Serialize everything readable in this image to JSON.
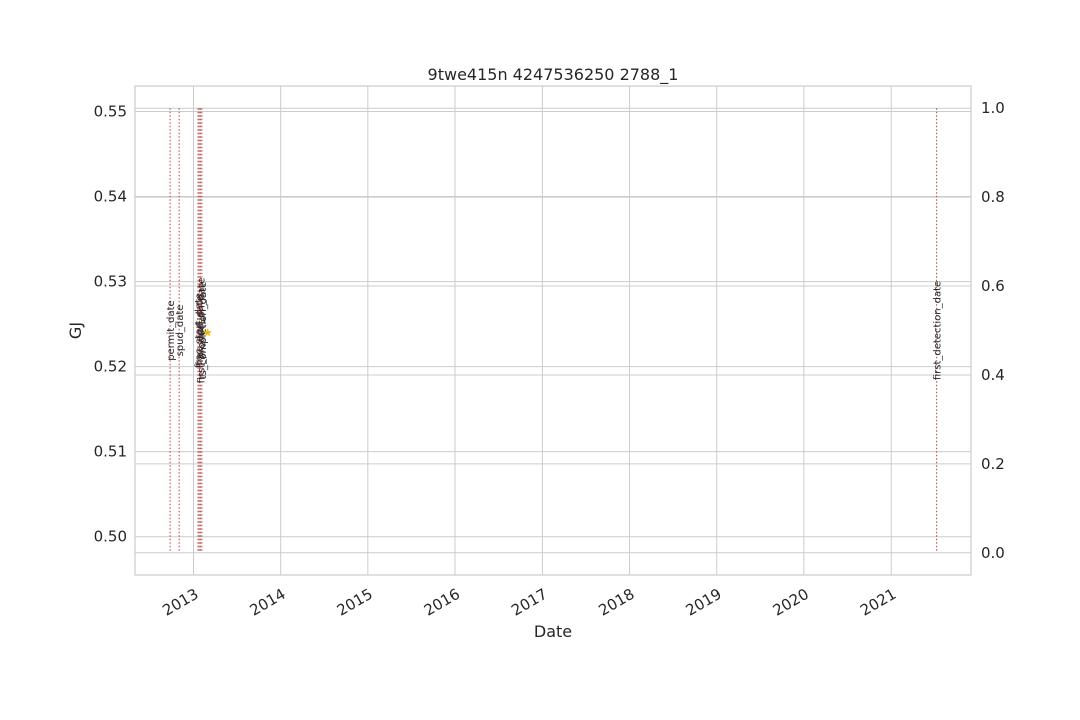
{
  "chart_data": {
    "type": "line",
    "title": "9twe415n 4247536250 2788_1",
    "xlabel": "Date",
    "ylabel": "GJ",
    "ylabel_color": "#1f77b4",
    "xlim": [
      "2012-05-01",
      "2021-12-01"
    ],
    "ylim": [
      0.4955,
      0.553
    ],
    "y2lim": [
      -0.05,
      1.05
    ],
    "x_ticks": [
      {
        "date": "2013-01-01",
        "label": "2013"
      },
      {
        "date": "2014-01-01",
        "label": "2014"
      },
      {
        "date": "2015-01-01",
        "label": "2015"
      },
      {
        "date": "2016-01-01",
        "label": "2016"
      },
      {
        "date": "2017-01-01",
        "label": "2017"
      },
      {
        "date": "2018-01-01",
        "label": "2018"
      },
      {
        "date": "2019-01-01",
        "label": "2019"
      },
      {
        "date": "2020-01-01",
        "label": "2020"
      },
      {
        "date": "2021-01-01",
        "label": "2021"
      }
    ],
    "y_ticks": [
      {
        "value": 0.5,
        "label": "0.50"
      },
      {
        "value": 0.51,
        "label": "0.51"
      },
      {
        "value": 0.52,
        "label": "0.52"
      },
      {
        "value": 0.53,
        "label": "0.53"
      },
      {
        "value": 0.54,
        "label": "0.54"
      },
      {
        "value": 0.55,
        "label": "0.55"
      }
    ],
    "y2_ticks": [
      {
        "value": 0.0,
        "label": "0.0"
      },
      {
        "value": 0.2,
        "label": "0.2"
      },
      {
        "value": 0.4,
        "label": "0.4"
      },
      {
        "value": 0.6,
        "label": "0.6"
      },
      {
        "value": 0.8,
        "label": "0.8"
      },
      {
        "value": 1.0,
        "label": "1.0"
      }
    ],
    "grid": true,
    "event_lines": [
      {
        "date": "2012-09-25",
        "label": "permit_date",
        "color": "#c0504d"
      },
      {
        "date": "2012-11-02",
        "label": "spud_date",
        "color": "#c0504d"
      },
      {
        "date": "2013-01-20",
        "label": "frac_start_date",
        "color": "#c0504d"
      },
      {
        "date": "2013-01-25",
        "label": "frac_end_date",
        "color": "#c0504d"
      },
      {
        "date": "2013-01-30",
        "label": "first_production_date",
        "color": "#c0504d"
      },
      {
        "date": "2013-02-05",
        "label": "ts_completion_date",
        "color": "#c0504d"
      },
      {
        "date": "2021-07-10",
        "label": "first_detection_date",
        "color": "#c0504d"
      }
    ],
    "points": [
      {
        "date": "2013-03-01",
        "value": 0.524,
        "marker": "star",
        "color": "#f5b800"
      }
    ]
  }
}
